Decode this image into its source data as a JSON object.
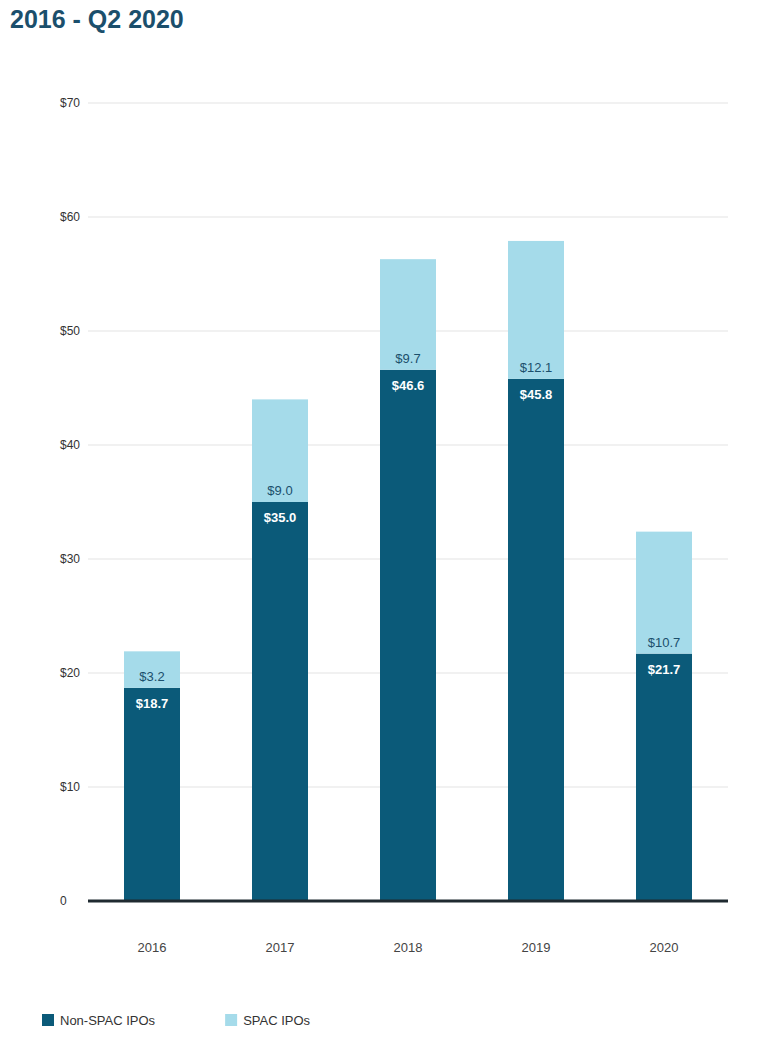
{
  "chart_data": {
    "type": "bar",
    "title": "2016 - Q2 2020",
    "stacked": true,
    "grid": true,
    "legend": "bottom-left",
    "data_labels": true,
    "categories": [
      "2016",
      "2017",
      "2018",
      "2019",
      "2020"
    ],
    "ylim": [
      0,
      70
    ],
    "yticks": [
      0,
      {
        "value": 10,
        "label": "$10"
      },
      {
        "value": 20,
        "label": "$20"
      },
      {
        "value": 30,
        "label": "$30"
      },
      {
        "value": 40,
        "label": "$40"
      },
      {
        "value": 50,
        "label": "$50"
      },
      {
        "value": 60,
        "label": "$60"
      },
      {
        "value": 70,
        "label": "$70"
      }
    ],
    "series": [
      {
        "name": "Non-SPAC IPOs",
        "color": "#0b5a79",
        "values": [
          18.7,
          35.0,
          46.6,
          45.8,
          21.7
        ],
        "value_labels": [
          "$18.7",
          "$35.0",
          "$46.6",
          "$45.8",
          "$21.7"
        ]
      },
      {
        "name": "SPAC IPOs",
        "color": "#a5dbea",
        "values": [
          3.2,
          9.0,
          9.7,
          12.1,
          10.7
        ],
        "value_labels": [
          "$3.2",
          "$9.0",
          "$9.7",
          "$12.1",
          "$10.7"
        ]
      }
    ]
  }
}
